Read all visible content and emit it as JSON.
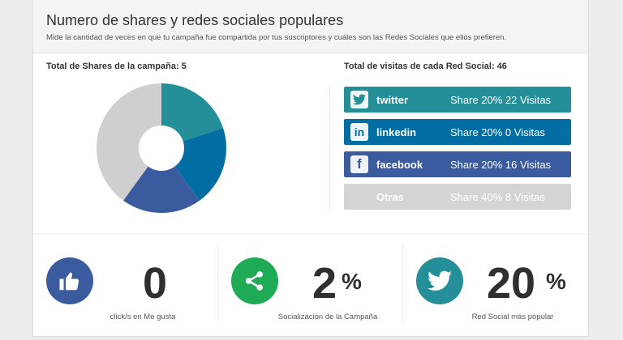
{
  "header": {
    "title": "Numero de shares y redes sociales populares",
    "subtitle": "Mide la cantidad de veces en que tu campaña fue compartida por tus suscriptores y cuáles son las Redes Sociales que ellos prefieren."
  },
  "left": {
    "label": "Total de Shares de la campaña: 5"
  },
  "right": {
    "label": "Total de visitas de cada Red Social: 46",
    "rows": [
      {
        "name": "twitter",
        "stats": "Share 20% 22 Visitas",
        "icon": "twitter-bird-icon",
        "color": "#258f99"
      },
      {
        "name": "linkedin",
        "stats": "Share 20% 0 Visitas",
        "icon": "linkedin-icon",
        "color": "#026ea3"
      },
      {
        "name": "facebook",
        "stats": "Share 20% 16 Visitas",
        "icon": "facebook-icon",
        "color": "#3a5b9e"
      },
      {
        "name": "Otras",
        "stats": "Share 40% 8 Visitas",
        "icon": "",
        "color": "#d4d4d4"
      }
    ]
  },
  "pie": {
    "slices": [
      {
        "label": "twitter",
        "share": 20,
        "color": "#258f99"
      },
      {
        "label": "linkedin",
        "share": 20,
        "color": "#026ea3"
      },
      {
        "label": "facebook",
        "share": 20,
        "color": "#3a5b9e"
      },
      {
        "label": "Otras",
        "share": 40,
        "color": "#cfcfcf"
      }
    ]
  },
  "kpis": [
    {
      "icon": "thumbs-up-icon",
      "color": "#3a5b9e",
      "value": "0",
      "unit": "",
      "caption": "click/s en Me gusta"
    },
    {
      "icon": "share-icon",
      "color": "#1faa55",
      "value": "2",
      "unit": "%",
      "caption": "Socialización de la Campaña"
    },
    {
      "icon": "twitter-bird-icon",
      "color": "#258f99",
      "value": "20",
      "unit": "%",
      "caption": "Red Social más popular"
    }
  ]
}
